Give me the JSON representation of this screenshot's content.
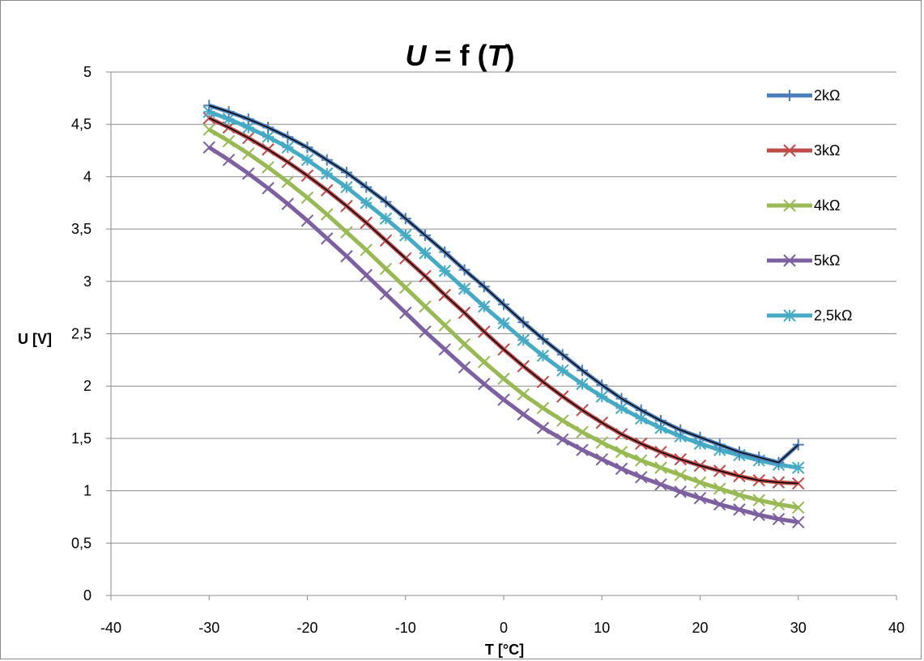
{
  "chart_data": {
    "type": "line",
    "title": {
      "var1": "U",
      "mid": " = f (",
      "var2": "T",
      "end": ")"
    },
    "xlabel": "T [°C]",
    "ylabel": "U [V]",
    "xlim": [
      -40,
      40
    ],
    "ylim": [
      0,
      5
    ],
    "x_ticks": [
      "-40",
      "-30",
      "-20",
      "-10",
      "0",
      "10",
      "20",
      "30",
      "40"
    ],
    "y_ticks": [
      "0",
      "0,5",
      "1",
      "1,5",
      "2",
      "2,5",
      "3",
      "3,5",
      "4",
      "4,5",
      "5"
    ],
    "grid": "horizontal",
    "legend_position": "right",
    "x": [
      -30,
      -28,
      -26,
      -24,
      -22,
      -20,
      -18,
      -16,
      -14,
      -12,
      -10,
      -8,
      -6,
      -4,
      -2,
      0,
      2,
      4,
      6,
      8,
      10,
      12,
      14,
      16,
      18,
      20,
      22,
      24,
      26,
      28,
      30
    ],
    "series": [
      {
        "name": "2kΩ",
        "color": "#4a7ebb",
        "marker": "plus",
        "values": [
          4.68,
          4.62,
          4.55,
          4.47,
          4.38,
          4.28,
          4.16,
          4.04,
          3.9,
          3.76,
          3.6,
          3.44,
          3.28,
          3.11,
          2.95,
          2.78,
          2.61,
          2.45,
          2.3,
          2.15,
          2.01,
          1.88,
          1.77,
          1.67,
          1.58,
          1.51,
          1.44,
          1.37,
          1.32,
          1.27,
          1.44
        ]
      },
      {
        "name": "3kΩ",
        "color": "#be4b48",
        "marker": "cross",
        "values": [
          4.56,
          4.47,
          4.37,
          4.26,
          4.14,
          4.01,
          3.87,
          3.72,
          3.56,
          3.39,
          3.22,
          3.05,
          2.87,
          2.7,
          2.52,
          2.35,
          2.19,
          2.04,
          1.9,
          1.77,
          1.65,
          1.54,
          1.45,
          1.37,
          1.3,
          1.24,
          1.19,
          1.14,
          1.1,
          1.08,
          1.07
        ]
      },
      {
        "name": "4kΩ",
        "color": "#98b954",
        "marker": "cross",
        "values": [
          4.45,
          4.34,
          4.22,
          4.09,
          3.95,
          3.8,
          3.64,
          3.47,
          3.3,
          3.12,
          2.94,
          2.76,
          2.58,
          2.4,
          2.23,
          2.07,
          1.92,
          1.79,
          1.67,
          1.56,
          1.46,
          1.37,
          1.29,
          1.22,
          1.15,
          1.08,
          1.02,
          0.96,
          0.91,
          0.87,
          0.84
        ]
      },
      {
        "name": "5kΩ",
        "color": "#7d60a0",
        "marker": "cross",
        "values": [
          4.28,
          4.16,
          4.03,
          3.89,
          3.74,
          3.58,
          3.41,
          3.24,
          3.06,
          2.88,
          2.7,
          2.52,
          2.35,
          2.18,
          2.02,
          1.87,
          1.73,
          1.6,
          1.49,
          1.39,
          1.3,
          1.21,
          1.13,
          1.06,
          0.99,
          0.93,
          0.87,
          0.82,
          0.77,
          0.73,
          0.7
        ]
      },
      {
        "name": "2,5kΩ",
        "color": "#46aac5",
        "marker": "star",
        "values": [
          4.62,
          4.55,
          4.47,
          4.38,
          4.28,
          4.16,
          4.03,
          3.9,
          3.75,
          3.6,
          3.44,
          3.27,
          3.1,
          2.93,
          2.76,
          2.6,
          2.44,
          2.29,
          2.15,
          2.02,
          1.9,
          1.79,
          1.69,
          1.6,
          1.52,
          1.45,
          1.39,
          1.34,
          1.29,
          1.25,
          1.22
        ]
      }
    ],
    "overlay_curves": [
      {
        "name": "2kΩ",
        "color": "#000000"
      },
      {
        "name": "3kΩ",
        "color": "#000000"
      }
    ]
  }
}
